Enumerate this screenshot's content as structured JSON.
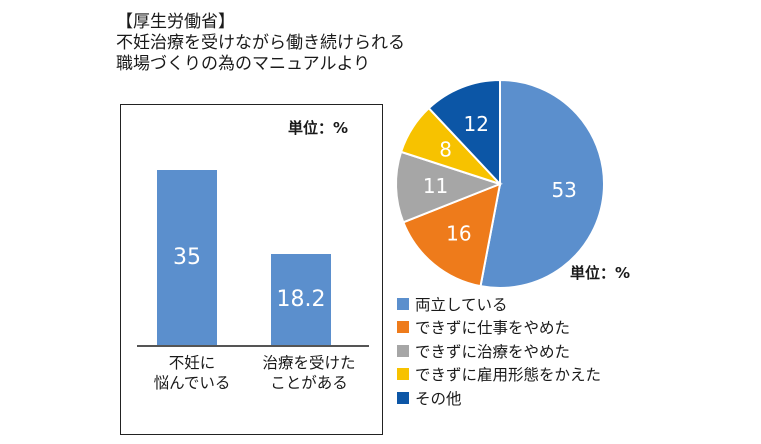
{
  "source": {
    "org": "【厚生労働省】",
    "line1": "不妊治療を受けながら働き続けられる",
    "line2": "職場づくりの為のマニュアルより"
  },
  "chart_data": [
    {
      "type": "bar",
      "unit_label": "単位：%",
      "categories": [
        "不妊に\n悩んでいる",
        "治療を受けた\nことがある"
      ],
      "values": [
        35,
        18.2
      ],
      "value_labels": [
        "35",
        "18.2"
      ],
      "ylim": [
        0,
        40
      ],
      "color": "#5b8fcd"
    },
    {
      "type": "pie",
      "unit_label": "単位：%",
      "slices": [
        {
          "label": "両立している",
          "value": 53,
          "color": "#5b8fcd"
        },
        {
          "label": "できずに仕事をやめた",
          "value": 16,
          "color": "#ee7b1b"
        },
        {
          "label": "できずに治療をやめた",
          "value": 11,
          "color": "#a6a6a6"
        },
        {
          "label": "できずに雇用形態をかえた",
          "value": 8,
          "color": "#f7c200"
        },
        {
          "label": "その他",
          "value": 12,
          "color": "#0c56a6"
        }
      ]
    }
  ]
}
